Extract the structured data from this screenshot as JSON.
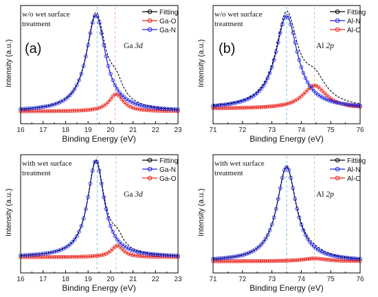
{
  "colors": {
    "fitting": "#000000",
    "red": "#e8221b",
    "blue": "#1a22e0",
    "ref_blue": "#6aaee0",
    "ref_orange": "#f2a17a"
  },
  "chart_data": [
    {
      "type": "line",
      "panel_tag": "(a)",
      "annotation_lines": [
        "w/o wet surface",
        "treatment"
      ],
      "core_level": {
        "element": "Ga",
        "orbital": "3d"
      },
      "xlabel": "Binding Energy (eV)",
      "ylabel": "Intensity (a.u.)",
      "xlim": [
        16,
        23
      ],
      "xticks": [
        16,
        17,
        18,
        19,
        20,
        21,
        22,
        23
      ],
      "legend_position": "top-right",
      "legend": [
        {
          "label": "Fitting",
          "color": "#000000"
        },
        {
          "label": "Ga-O",
          "color": "#e8221b"
        },
        {
          "label": "Ga-N",
          "color": "#1a22e0"
        }
      ],
      "ref_lines": [
        {
          "x": 19.4,
          "color": "#6aaee0"
        },
        {
          "x": 20.2,
          "color": "#f2a17a"
        }
      ],
      "series": [
        {
          "name": "Fitting",
          "peaks": [
            {
              "center": 19.35,
              "height": 1.0,
              "width": 0.52
            },
            {
              "center": 20.25,
              "height": 0.18,
              "width": 0.38
            }
          ],
          "color": "#000000"
        },
        {
          "name": "Ga-O",
          "peaks": [
            {
              "center": 20.25,
              "height": 0.18,
              "width": 0.38
            }
          ],
          "color": "#e8221b"
        },
        {
          "name": "Ga-N",
          "peaks": [
            {
              "center": 19.35,
              "height": 1.0,
              "width": 0.52
            }
          ],
          "color": "#1a22e0"
        }
      ]
    },
    {
      "type": "line",
      "panel_tag": "(b)",
      "annotation_lines": [
        "w/o wet surface",
        "treatment"
      ],
      "core_level": {
        "element": "Al",
        "orbital": "2p"
      },
      "xlabel": "Binding Energy (eV)",
      "ylabel": "Intensity (a.u.)",
      "xlim": [
        71,
        76
      ],
      "xticks": [
        71,
        72,
        73,
        74,
        75,
        76
      ],
      "legend_position": "top-right",
      "legend": [
        {
          "label": "Fitting",
          "color": "#000000"
        },
        {
          "label": "Al-N",
          "color": "#1a22e0"
        },
        {
          "label": "Al-O",
          "color": "#e8221b"
        }
      ],
      "ref_lines": [
        {
          "x": 73.5,
          "color": "#6aaee0"
        },
        {
          "x": 74.45,
          "color": "#f2a17a"
        }
      ],
      "series": [
        {
          "name": "Fitting",
          "peaks": [
            {
              "center": 73.5,
              "height": 1.0,
              "width": 0.45
            },
            {
              "center": 74.45,
              "height": 0.25,
              "width": 0.48
            }
          ],
          "color": "#000000"
        },
        {
          "name": "Al-N",
          "peaks": [
            {
              "center": 73.5,
              "height": 1.0,
              "width": 0.45
            }
          ],
          "color": "#1a22e0"
        },
        {
          "name": "Al-O",
          "peaks": [
            {
              "center": 74.45,
              "height": 0.25,
              "width": 0.48
            }
          ],
          "color": "#e8221b"
        }
      ]
    },
    {
      "type": "line",
      "panel_tag": "",
      "annotation_lines": [
        "with wet surface",
        "treatment"
      ],
      "core_level": {
        "element": "Ga",
        "orbital": "3d"
      },
      "xlabel": "Binding Energy (eV)",
      "ylabel": "Intensity (a.u.)",
      "xlim": [
        16,
        23
      ],
      "xticks": [
        16,
        17,
        18,
        19,
        20,
        21,
        22,
        23
      ],
      "legend_position": "top-right",
      "legend": [
        {
          "label": "Fitting",
          "color": "#000000"
        },
        {
          "label": "Ga-N",
          "color": "#1a22e0"
        },
        {
          "label": "Ga-O",
          "color": "#e8221b"
        }
      ],
      "ref_lines": [
        {
          "x": 19.4,
          "color": "#6aaee0"
        },
        {
          "x": 20.25,
          "color": "#f2a17a"
        }
      ],
      "series": [
        {
          "name": "Fitting",
          "peaks": [
            {
              "center": 19.35,
              "height": 1.0,
              "width": 0.45
            },
            {
              "center": 20.3,
              "height": 0.12,
              "width": 0.32
            }
          ],
          "color": "#000000"
        },
        {
          "name": "Ga-N",
          "peaks": [
            {
              "center": 19.35,
              "height": 1.0,
              "width": 0.45
            }
          ],
          "color": "#1a22e0"
        },
        {
          "name": "Ga-O",
          "peaks": [
            {
              "center": 20.3,
              "height": 0.12,
              "width": 0.32
            }
          ],
          "color": "#e8221b"
        }
      ]
    },
    {
      "type": "line",
      "panel_tag": "",
      "annotation_lines": [
        "with wet surface",
        "treatment"
      ],
      "core_level": {
        "element": "Al",
        "orbital": "2p"
      },
      "xlabel": "Binding Energy (eV)",
      "ylabel": "Intensity (a.u.)",
      "xlim": [
        71,
        76
      ],
      "xticks": [
        71,
        72,
        73,
        74,
        75,
        76
      ],
      "legend_position": "top-right",
      "legend": [
        {
          "label": "Fitting",
          "color": "#000000"
        },
        {
          "label": "Al-N",
          "color": "#1a22e0"
        },
        {
          "label": "Al-O",
          "color": "#e8221b"
        }
      ],
      "ref_lines": [
        {
          "x": 73.5,
          "color": "#6aaee0"
        },
        {
          "x": 74.45,
          "color": "#f2a17a"
        }
      ],
      "series": [
        {
          "name": "Fitting",
          "peaks": [
            {
              "center": 73.5,
              "height": 1.0,
              "width": 0.4
            },
            {
              "center": 74.45,
              "height": 0.03,
              "width": 0.5
            }
          ],
          "color": "#000000"
        },
        {
          "name": "Al-N",
          "peaks": [
            {
              "center": 73.5,
              "height": 1.0,
              "width": 0.4
            }
          ],
          "color": "#1a22e0"
        },
        {
          "name": "Al-O",
          "peaks": [
            {
              "center": 74.45,
              "height": 0.03,
              "width": 0.5
            }
          ],
          "color": "#e8221b"
        }
      ]
    }
  ]
}
